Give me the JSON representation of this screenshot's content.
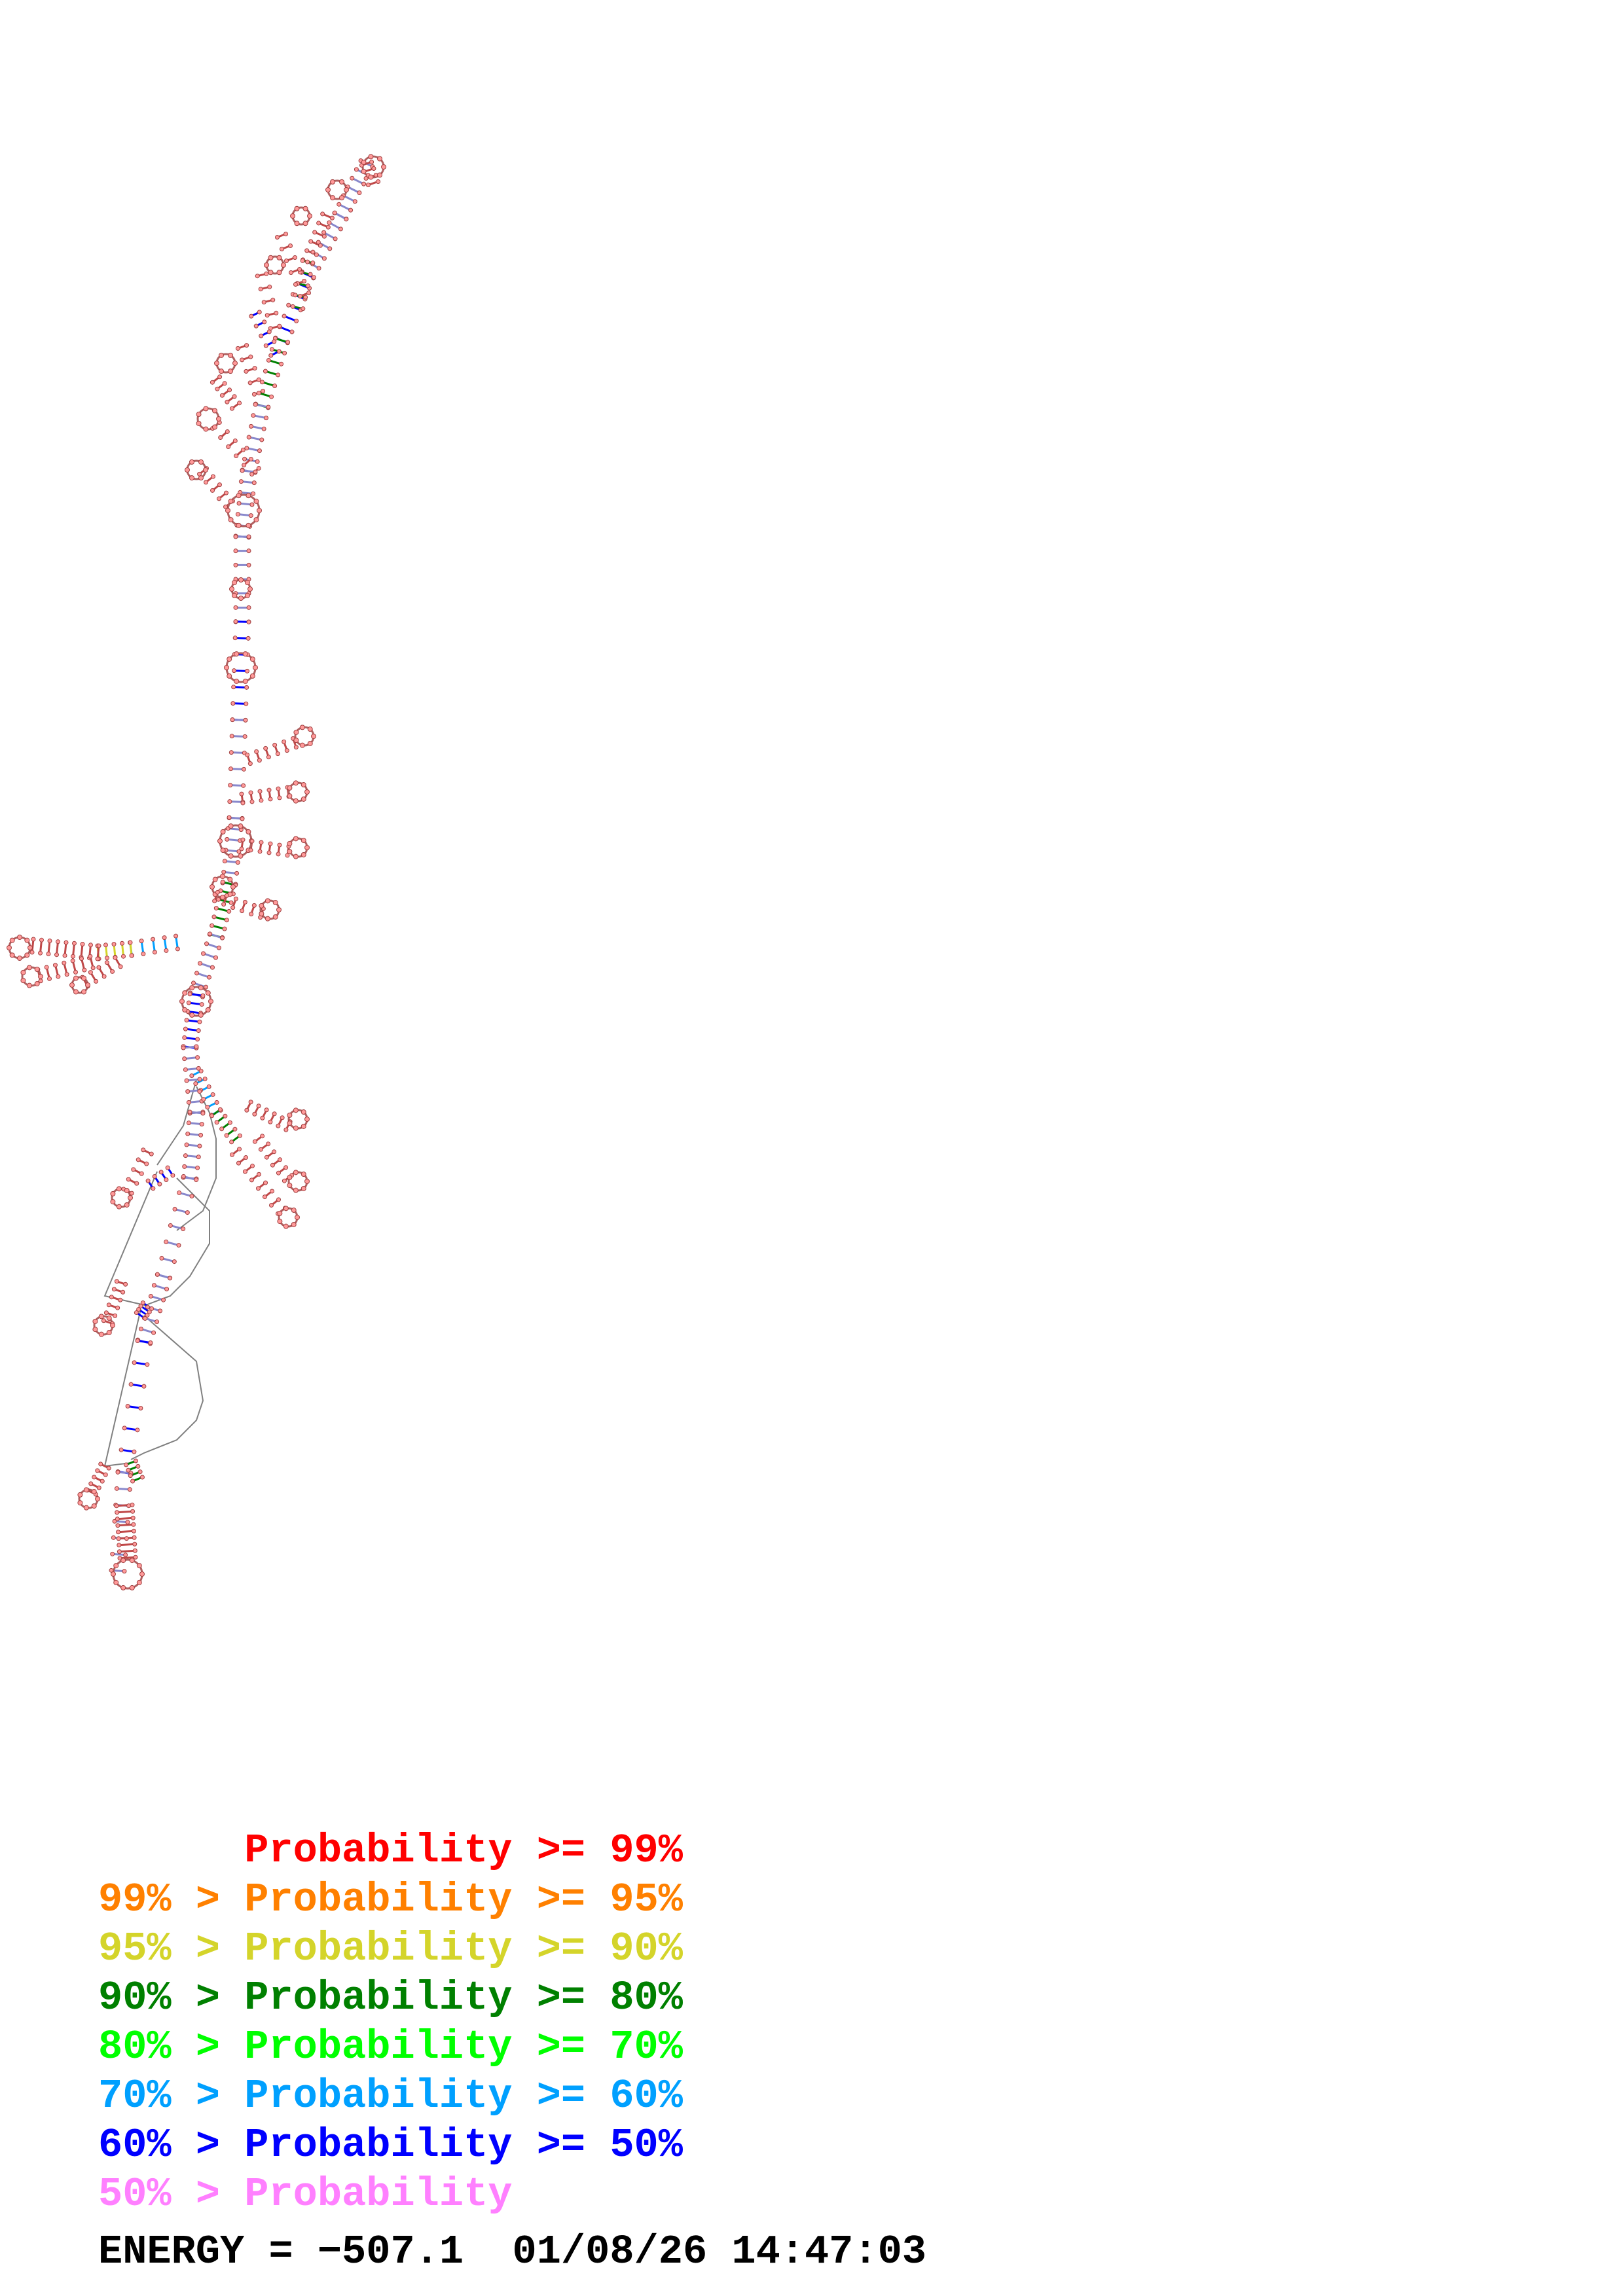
{
  "legend": {
    "rows": [
      {
        "text": "      Probability >= 99%",
        "color": "#ff0000"
      },
      {
        "text": "99% > Probability >= 95%",
        "color": "#ff8000"
      },
      {
        "text": "95% > Probability >= 90%",
        "color": "#d4d42a"
      },
      {
        "text": "90% > Probability >= 80%",
        "color": "#008000"
      },
      {
        "text": "80% > Probability >= 70%",
        "color": "#00ff00"
      },
      {
        "text": "70% > Probability >= 60%",
        "color": "#00a0ff"
      },
      {
        "text": "60% > Probability >= 50%",
        "color": "#0000ff"
      },
      {
        "text": "50% > Probability",
        "color": "#ff80ff"
      }
    ]
  },
  "footer": {
    "energy_text": "ENERGY = −507.1  01/08/26 14:47:03"
  },
  "colors": {
    "pair_default": "#ff80ff",
    "nucleotide_fill": "#ff9999",
    "backbone": "#808080"
  }
}
